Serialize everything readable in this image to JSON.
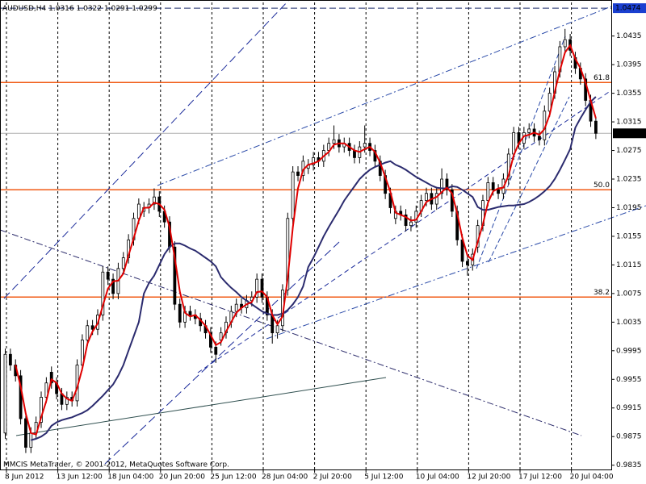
{
  "chart_data": {
    "type": "candlestick",
    "title": "AUDUSD,H4",
    "footer": "MMCIS MetaTrader, © 2001-2012, MetaQuotes Software Corp.",
    "categories": [
      "8 Jun 2012",
      null,
      null,
      null,
      null,
      null,
      null,
      null,
      null,
      null,
      "13 Jun 12:00",
      null,
      null,
      null,
      null,
      null,
      null,
      null,
      null,
      null,
      "18 Jun 04:00",
      null,
      null,
      null,
      null,
      null,
      null,
      null,
      null,
      null,
      "20 Jun 20:00",
      null,
      null,
      null,
      null,
      null,
      null,
      null,
      null,
      null,
      "25 Jun 12:00",
      null,
      null,
      null,
      null,
      null,
      null,
      null,
      null,
      null,
      "28 Jun 04:00",
      null,
      null,
      null,
      null,
      null,
      null,
      null,
      null,
      null,
      "2 Jul 20:00",
      null,
      null,
      null,
      null,
      null,
      null,
      null,
      null,
      null,
      "5 Jul 12:00",
      null,
      null,
      null,
      null,
      null,
      null,
      null,
      null,
      null,
      "10 Jul 04:00",
      null,
      null,
      null,
      null,
      null,
      null,
      null,
      null,
      null,
      "12 Jul 20:00",
      null,
      null,
      null,
      null,
      null,
      null,
      null,
      null,
      null,
      "17 Jul 12:00",
      null,
      null,
      null,
      null,
      null,
      null,
      null,
      null,
      null,
      "20 Jul 04:00",
      null,
      null,
      null,
      null,
      null
    ],
    "candles": [
      [
        0.988,
        0.9998,
        0.9872,
        0.999
      ],
      [
        0.999,
        0.9998,
        0.9967,
        0.9975
      ],
      [
        0.9975,
        0.9983,
        0.9952,
        0.996
      ],
      [
        0.996,
        0.9968,
        0.9892,
        0.99
      ],
      [
        0.99,
        0.9908,
        0.9852,
        0.986
      ],
      [
        0.986,
        0.9888,
        0.9852,
        0.988
      ],
      [
        0.988,
        0.9903,
        0.9872,
        0.9895
      ],
      [
        0.9895,
        0.9938,
        0.9887,
        0.993
      ],
      [
        0.993,
        0.9958,
        0.9922,
        0.995
      ],
      [
        0.9965,
        0.9973,
        0.9942,
        0.995
      ],
      [
        0.995,
        0.9958,
        0.9927,
        0.9935
      ],
      [
        0.9935,
        0.9943,
        0.9912,
        0.992
      ],
      [
        0.992,
        0.9938,
        0.9912,
        0.993
      ],
      [
        0.993,
        0.9938,
        0.9917,
        0.9925
      ],
      [
        0.9925,
        0.9983,
        0.9917,
        0.9975
      ],
      [
        0.9975,
        1.0018,
        0.9967,
        1.001
      ],
      [
        1.001,
        1.0038,
        1.0002,
        1.003
      ],
      [
        1.003,
        1.0038,
        1.0017,
        1.0025
      ],
      [
        1.0025,
        1.0053,
        1.0017,
        1.0045
      ],
      [
        1.0045,
        1.0113,
        1.0037,
        1.0105
      ],
      [
        1.0105,
        1.0113,
        1.0087,
        1.0095
      ],
      [
        1.0095,
        1.0103,
        1.0067,
        1.0075
      ],
      [
        1.0075,
        1.0118,
        1.0067,
        1.011
      ],
      [
        1.011,
        1.0133,
        1.0102,
        1.0125
      ],
      [
        1.0125,
        1.0158,
        1.0117,
        1.015
      ],
      [
        1.015,
        1.0188,
        1.0142,
        1.018
      ],
      [
        1.018,
        1.0208,
        1.0172,
        1.02
      ],
      [
        1.019,
        1.0203,
        1.0182,
        1.0195
      ],
      [
        1.0195,
        1.0208,
        1.0187,
        1.02
      ],
      [
        1.02,
        1.0222,
        1.0192,
        1.021
      ],
      [
        1.021,
        1.0218,
        1.0182,
        1.019
      ],
      [
        1.019,
        1.0198,
        1.0167,
        1.0175
      ],
      [
        1.0175,
        1.0183,
        1.0132,
        1.014
      ],
      [
        1.014,
        1.0148,
        1.0052,
        1.006
      ],
      [
        1.006,
        1.0068,
        1.0027,
        1.0035
      ],
      [
        1.0035,
        1.0058,
        1.0027,
        1.005
      ],
      [
        1.005,
        1.0058,
        1.0037,
        1.0045
      ],
      [
        1.0045,
        1.0053,
        1.0032,
        1.004
      ],
      [
        1.004,
        1.0048,
        1.0022,
        1.003
      ],
      [
        1.003,
        1.0038,
        1.0012,
        1.002
      ],
      [
        1.002,
        1.0028,
        0.9992,
        1.0
      ],
      [
        1.0,
        1.0008,
        0.9978,
        0.999
      ],
      [
        1.001,
        1.0028,
        1.0002,
        1.002
      ],
      [
        1.002,
        1.0043,
        1.0012,
        1.0035
      ],
      [
        1.0035,
        1.0058,
        1.0027,
        1.005
      ],
      [
        1.005,
        1.0068,
        1.0042,
        1.006
      ],
      [
        1.006,
        1.0068,
        1.0047,
        1.0055
      ],
      [
        1.0055,
        1.0073,
        1.0047,
        1.0065
      ],
      [
        1.0065,
        1.0078,
        1.0057,
        1.007
      ],
      [
        1.007,
        1.0103,
        1.0062,
        1.0095
      ],
      [
        1.0095,
        1.0103,
        1.0062,
        1.007
      ],
      [
        1.007,
        1.0078,
        1.0037,
        1.0045
      ],
      [
        1.0045,
        1.0053,
        1.0005,
        1.002
      ],
      [
        1.002,
        1.0038,
        1.0012,
        1.003
      ],
      [
        1.003,
        1.0088,
        1.0022,
        1.008
      ],
      [
        1.008,
        1.0188,
        1.0072,
        1.018
      ],
      [
        1.018,
        1.0253,
        1.0172,
        1.0245
      ],
      [
        1.0245,
        1.0253,
        1.0232,
        1.024
      ],
      [
        1.024,
        1.0268,
        1.0232,
        1.026
      ],
      [
        1.025,
        1.0263,
        1.0242,
        1.0255
      ],
      [
        1.0255,
        1.0273,
        1.0247,
        1.0265
      ],
      [
        1.0265,
        1.0273,
        1.0252,
        1.026
      ],
      [
        1.026,
        1.0283,
        1.0252,
        1.0275
      ],
      [
        1.0275,
        1.0293,
        1.0267,
        1.0285
      ],
      [
        1.0285,
        1.031,
        1.0277,
        1.029
      ],
      [
        1.029,
        1.0298,
        1.0272,
        1.028
      ],
      [
        1.028,
        1.0293,
        1.0272,
        1.0285
      ],
      [
        1.0285,
        1.0293,
        1.0267,
        1.0275
      ],
      [
        1.0275,
        1.0283,
        1.0257,
        1.0265
      ],
      [
        1.0265,
        1.0288,
        1.0257,
        1.028
      ],
      [
        1.028,
        1.031,
        1.0272,
        1.0285
      ],
      [
        1.0285,
        1.0293,
        1.0267,
        1.0275
      ],
      [
        1.0275,
        1.0283,
        1.0252,
        1.026
      ],
      [
        1.026,
        1.0268,
        1.0232,
        1.024
      ],
      [
        1.024,
        1.0248,
        1.0207,
        1.0215
      ],
      [
        1.0215,
        1.0223,
        1.0187,
        1.0195
      ],
      [
        1.018,
        1.0198,
        1.0172,
        1.019
      ],
      [
        1.019,
        1.0198,
        1.0177,
        1.0185
      ],
      [
        1.0185,
        1.0193,
        1.0162,
        1.017
      ],
      [
        1.017,
        1.0183,
        1.0162,
        1.0175
      ],
      [
        1.0175,
        1.0198,
        1.0167,
        1.019
      ],
      [
        1.019,
        1.0213,
        1.0182,
        1.0205
      ],
      [
        1.0205,
        1.0223,
        1.0197,
        1.0215
      ],
      [
        1.0215,
        1.0223,
        1.0192,
        1.02
      ],
      [
        1.02,
        1.0223,
        1.0192,
        1.0215
      ],
      [
        1.0215,
        1.025,
        1.0207,
        1.0235
      ],
      [
        1.0235,
        1.0243,
        1.0212,
        1.022
      ],
      [
        1.022,
        1.0228,
        1.0182,
        1.019
      ],
      [
        1.019,
        1.0198,
        1.0142,
        1.015
      ],
      [
        1.015,
        1.0158,
        1.0112,
        1.012
      ],
      [
        1.012,
        1.0128,
        1.01,
        1.0115
      ],
      [
        1.0115,
        1.0138,
        1.0107,
        1.013
      ],
      [
        1.014,
        1.0178,
        1.0132,
        1.017
      ],
      [
        1.017,
        1.0213,
        1.0162,
        1.0205
      ],
      [
        1.0205,
        1.0238,
        1.0197,
        1.023
      ],
      [
        1.023,
        1.0238,
        1.0212,
        1.022
      ],
      [
        1.022,
        1.0228,
        1.0207,
        1.0215
      ],
      [
        1.0215,
        1.0243,
        1.0207,
        1.0235
      ],
      [
        1.0235,
        1.0278,
        1.0227,
        1.027
      ],
      [
        1.027,
        1.0308,
        1.0262,
        1.03
      ],
      [
        1.03,
        1.0308,
        1.0277,
        1.0285
      ],
      [
        1.0285,
        1.0308,
        1.0277,
        1.03
      ],
      [
        1.03,
        1.0313,
        1.0292,
        1.0305
      ],
      [
        1.0305,
        1.0313,
        1.0287,
        1.0295
      ],
      [
        1.0295,
        1.0303,
        1.0282,
        1.029
      ],
      [
        1.029,
        1.0338,
        1.0282,
        1.033
      ],
      [
        1.033,
        1.0363,
        1.0322,
        1.0355
      ],
      [
        1.0355,
        1.0393,
        1.0347,
        1.0385
      ],
      [
        1.0385,
        1.0428,
        1.0377,
        1.042
      ],
      [
        1.042,
        1.0445,
        1.0412,
        1.043
      ],
      [
        1.043,
        1.0438,
        1.0407,
        1.0415
      ],
      [
        1.0405,
        1.0413,
        1.0382,
        1.039
      ],
      [
        1.039,
        1.0398,
        1.0367,
        1.0375
      ],
      [
        1.0375,
        1.0383,
        1.0337,
        1.0345
      ],
      [
        1.0345,
        1.0353,
        1.0308,
        1.0316
      ],
      [
        1.0316,
        1.0322,
        1.0291,
        1.0299
      ]
    ],
    "ma_fast": {
      "color": "#e00000",
      "values": [
        null,
        null,
        0.9975,
        0.9945,
        0.9907,
        0.988,
        0.9878,
        0.9902,
        0.9925,
        0.9955,
        0.995,
        0.9935,
        0.9928,
        0.9925,
        0.9943,
        0.997,
        1.0005,
        1.0022,
        1.0033,
        1.0058,
        1.0082,
        1.0092,
        1.0093,
        1.0103,
        1.0128,
        1.0152,
        1.0177,
        1.0195,
        1.0195,
        1.0202,
        1.02,
        1.0192,
        1.0168,
        1.0125,
        1.0078,
        1.0048,
        1.0043,
        1.0045,
        1.0038,
        1.003,
        1.0017,
        1.0003,
        1.0007,
        1.0022,
        1.0035,
        1.0048,
        1.0055,
        1.006,
        1.0063,
        1.0077,
        1.0078,
        1.007,
        1.0045,
        1.0032,
        1.0043,
        1.0097,
        1.0168,
        1.0222,
        1.0248,
        1.0255,
        1.0257,
        1.026,
        1.0267,
        1.0273,
        1.0283,
        1.0285,
        1.0285,
        1.028,
        1.0275,
        1.0273,
        1.0277,
        1.028,
        1.0273,
        1.0258,
        1.0238,
        1.0217,
        1.0188,
        1.0185,
        1.0182,
        1.0177,
        1.0178,
        1.019,
        1.0203,
        1.0207,
        1.021,
        1.0217,
        1.0223,
        1.0215,
        1.0187,
        1.0153,
        1.0128,
        1.0122,
        1.0147,
        1.0172,
        1.0202,
        1.0218,
        1.0222,
        1.0223,
        1.024,
        1.0268,
        1.0285,
        1.0295,
        1.0297,
        1.03,
        1.0297,
        1.0305,
        1.0325,
        1.0357,
        1.0387,
        1.0412,
        1.0422,
        1.0403,
        1.039,
        1.037,
        1.0345,
        1.032
      ]
    },
    "ma_slow": {
      "color": "#2b2b6e",
      "values": [
        null,
        null,
        null,
        null,
        null,
        0.987,
        0.9872,
        0.9875,
        0.988,
        0.989,
        0.9895,
        0.9898,
        0.99,
        0.9902,
        0.9905,
        0.9908,
        0.9912,
        0.9918,
        0.9925,
        0.9932,
        0.994,
        0.9948,
        0.996,
        0.9975,
        0.9995,
        1.0015,
        1.0035,
        1.0075,
        1.009,
        1.01,
        1.0115,
        1.013,
        1.014,
        1.0145,
        1.0145,
        1.0142,
        1.0138,
        1.0135,
        1.013,
        1.0125,
        1.012,
        1.0113,
        1.0098,
        1.009,
        1.0083,
        1.0077,
        1.007,
        1.0065,
        1.006,
        1.0055,
        1.005,
        1.0047,
        1.0045,
        1.0045,
        1.0047,
        1.0052,
        1.006,
        1.007,
        1.0085,
        1.0112,
        1.0125,
        1.014,
        1.0155,
        1.0168,
        1.018,
        1.0192,
        1.0205,
        1.0215,
        1.0225,
        1.0235,
        1.0242,
        1.0248,
        1.0252,
        1.0255,
        1.0258,
        1.026,
        1.0255,
        1.0252,
        1.0248,
        1.0243,
        1.0238,
        1.0234,
        1.023,
        1.0226,
        1.0223,
        1.0222,
        1.0222,
        1.0225,
        1.0224,
        1.022,
        1.0215,
        1.021,
        1.0196,
        1.0192,
        1.0192,
        1.0194,
        1.0196,
        1.0197,
        1.0198,
        1.0198,
        1.0199,
        1.02,
        1.0203,
        1.0207,
        1.0212,
        1.0218,
        1.0225,
        1.0235,
        1.0248,
        1.0262,
        1.0277,
        1.0307,
        1.032,
        1.0332,
        1.0343,
        1.035
      ]
    },
    "levels": [
      {
        "value": 1.037,
        "label": "61.8"
      },
      {
        "value": 1.022,
        "label": "50.0"
      },
      {
        "value": 1.007,
        "label": "38.2"
      }
    ],
    "level_color": "#f05a14",
    "top_line": 1.0474,
    "ylim": [
      0.9829,
      1.0482
    ],
    "yticks": [
      0.9835,
      0.9875,
      0.9915,
      0.9955,
      0.9995,
      1.0035,
      1.0075,
      1.0115,
      1.0155,
      1.0195,
      1.0235,
      1.0275,
      1.0315,
      1.0355,
      1.0395,
      1.0435
    ],
    "grid": "x"
  }
}
